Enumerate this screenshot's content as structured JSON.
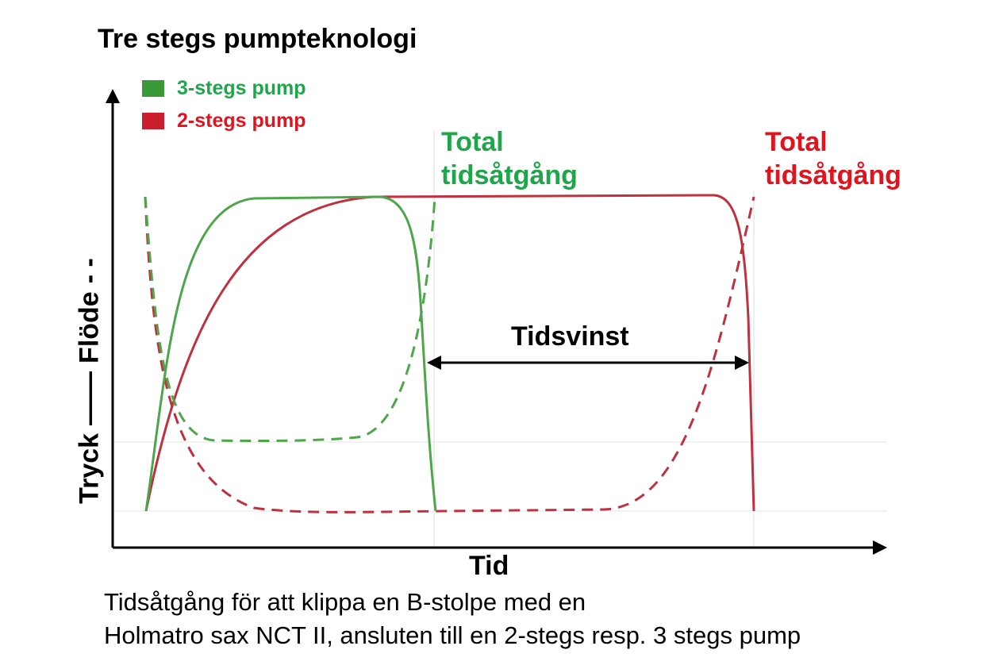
{
  "title": "Tre stegs pumpteknologi",
  "legend": [
    {
      "label": "3-stegs pump",
      "color": "#3a9a3a"
    },
    {
      "label": "2-stegs pump",
      "color": "#cc1f2e"
    }
  ],
  "annotations": {
    "total_green_line1": "Total",
    "total_green_line2": "tidsåtgång",
    "total_red_line1": "Total",
    "total_red_line2": "tidsåtgång",
    "tidsvinst": "Tidsvinst"
  },
  "axes": {
    "x_label": "Tid",
    "y_label_part1": "Tryck",
    "y_label_part2": "Flöde"
  },
  "caption": {
    "line1": "Tidsåtgång för att klippa en B-stolpe med en",
    "line2": "Holmatro sax NCT II, ansluten till en 2-stegs resp. 3 stegs pump"
  },
  "colors": {
    "green_text": "#1fa64a",
    "red_text": "#e0141e",
    "green_line": "#4ea64a",
    "red_line": "#c0303f"
  }
}
